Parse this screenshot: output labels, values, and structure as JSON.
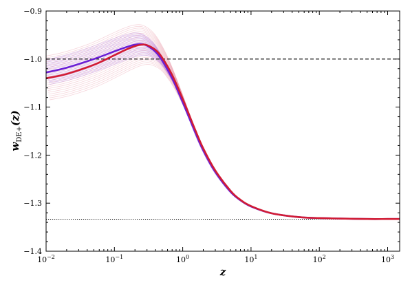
{
  "chart_data": {
    "type": "line",
    "xscale": "log",
    "xlim": [
      0.01,
      1500
    ],
    "ylim": [
      -1.4,
      -0.9
    ],
    "xlabel": "z",
    "ylabel": "w_DE+(z)",
    "ylabel_main": "w",
    "ylabel_sub": "DE+",
    "ylabel_args": "(z)",
    "y_ticks": [
      -1.4,
      -1.3,
      -1.2,
      -1.1,
      -1.0,
      -0.9
    ],
    "y_tick_labels": [
      "−1.4",
      "−1.3",
      "−1.2",
      "−1.1",
      "−1.0",
      "−0.9"
    ],
    "x_ticks": [
      0.01,
      0.1,
      1,
      10,
      100,
      1000
    ],
    "x_tick_labels": [
      {
        "base": "10",
        "exp": "−2"
      },
      {
        "base": "10",
        "exp": "−1"
      },
      {
        "base": "10",
        "exp": "0"
      },
      {
        "base": "10",
        "exp": "1"
      },
      {
        "base": "10",
        "exp": "2"
      },
      {
        "base": "10",
        "exp": "3"
      }
    ],
    "grid": false,
    "reference_lines": [
      {
        "y": -1.0,
        "style": "dashed",
        "color": "#000000"
      },
      {
        "y": -1.3333,
        "style": "dotted",
        "color": "#000000"
      }
    ],
    "series": [
      {
        "color": "#6a1fd6",
        "x": [
          0.01,
          0.02,
          0.05,
          0.1,
          0.15,
          0.2,
          0.25,
          0.3,
          0.4,
          0.5,
          0.7,
          1,
          1.5,
          2,
          3,
          5,
          7,
          10,
          20,
          50,
          100,
          200,
          500,
          1000,
          1500
        ],
        "y": [
          -1.028,
          -1.018,
          -1.0,
          -0.984,
          -0.975,
          -0.97,
          -0.969,
          -0.972,
          -0.985,
          -1.003,
          -1.04,
          -1.09,
          -1.15,
          -1.19,
          -1.235,
          -1.276,
          -1.294,
          -1.307,
          -1.321,
          -1.329,
          -1.331,
          -1.332,
          -1.333,
          -1.333,
          -1.333
        ]
      },
      {
        "color": "#d11c34",
        "x": [
          0.01,
          0.02,
          0.05,
          0.1,
          0.15,
          0.2,
          0.25,
          0.3,
          0.4,
          0.5,
          0.7,
          1,
          1.5,
          2,
          3,
          5,
          7,
          10,
          20,
          50,
          100,
          200,
          500,
          1000,
          1500
        ],
        "y": [
          -1.04,
          -1.031,
          -1.012,
          -0.992,
          -0.98,
          -0.973,
          -0.97,
          -0.971,
          -0.981,
          -0.997,
          -1.033,
          -1.083,
          -1.145,
          -1.186,
          -1.232,
          -1.274,
          -1.293,
          -1.306,
          -1.321,
          -1.329,
          -1.331,
          -1.332,
          -1.333,
          -1.333,
          -1.333
        ]
      }
    ],
    "sample_bands": [
      {
        "color": "#9b5fe0",
        "count": 20
      },
      {
        "color": "#e58a9a",
        "count": 24
      }
    ]
  }
}
